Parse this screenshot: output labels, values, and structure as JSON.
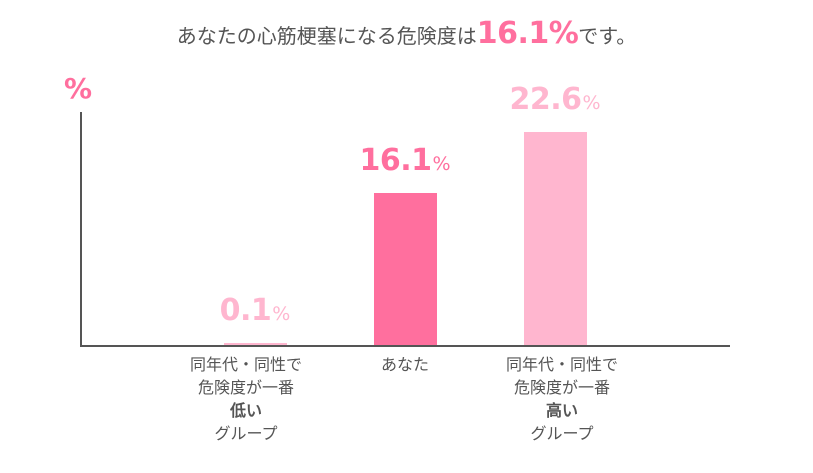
{
  "title": {
    "prefix": "あなたの心筋梗塞になる危険度は",
    "highlight": "16.1%",
    "suffix": "です。"
  },
  "colors": {
    "accent": "#ff6f9e",
    "light": "#ffb6cf",
    "axis": "#555555",
    "text": "#555555"
  },
  "chart_data": {
    "type": "bar",
    "ylabel": "%",
    "ylim": [
      0,
      25
    ],
    "unit": "%",
    "categories": [
      {
        "line1": "同年代・同性で",
        "line2": "危険度が一番",
        "line3": "低い",
        "line4": "グループ"
      },
      {
        "line1": "あなた",
        "line2": "",
        "line3": "",
        "line4": ""
      },
      {
        "line1": "同年代・同性で",
        "line2": "危険度が一番",
        "line3": "高い",
        "line4": "グループ"
      }
    ],
    "values": [
      0.1,
      16.1,
      22.6
    ],
    "value_labels": [
      "0.1",
      "16.1",
      "22.6"
    ],
    "bar_colors": [
      "#ffb6cf",
      "#ff6f9e",
      "#ffb6cf"
    ]
  }
}
